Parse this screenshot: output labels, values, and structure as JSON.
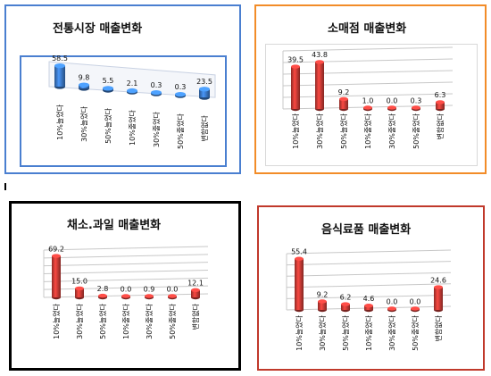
{
  "categories": [
    "10%늘었다",
    "30%늘었다",
    "50%늘었다",
    "10%줄었다",
    "30%줄었다",
    "50%줄었다",
    "변함없다"
  ],
  "colors": {
    "panel1_border": "#4a7fd0",
    "panel2_border": "#f28c28",
    "panel3_border": "#000000",
    "panel4_border": "#c0392b",
    "bar_blue": "#3a78c6",
    "bar_red": "#c83a35",
    "gridline": "#c8c8c8"
  },
  "chart_data": [
    {
      "type": "bar",
      "title": "전통시장 매출변화",
      "categories": [
        "10%늘었다",
        "30%늘었다",
        "50%늘었다",
        "10%줄었다",
        "30%줄었다",
        "50%줄었다",
        "변함없다"
      ],
      "values": [
        58.5,
        9.8,
        5.5,
        2.1,
        0.3,
        0.3,
        23.5
      ],
      "value_labels": [
        "58.5",
        "9.8",
        "5.5",
        "2.1",
        "0.3",
        "0.3",
        "23.5"
      ],
      "style": "3d-cylinder",
      "color": "#3a78c6"
    },
    {
      "type": "bar",
      "title": "소매점 매출변화",
      "categories": [
        "10%늘었다",
        "30%늘었다",
        "50%늘었다",
        "10%줄었다",
        "30%줄었다",
        "50%줄었다",
        "변함없다"
      ],
      "values": [
        39.5,
        43.8,
        9.2,
        1.0,
        0.0,
        0.3,
        6.3
      ],
      "value_labels": [
        "39.5",
        "43.8",
        "9.2",
        "1.0",
        "0.0",
        "0.3",
        "6.3"
      ],
      "style": "3d-cylinder",
      "color": "#c83a35"
    },
    {
      "type": "bar",
      "title": "채소.과일 매출변화",
      "categories": [
        "10%늘었다",
        "30%늘었다",
        "50%늘었다",
        "10%줄었다",
        "30%줄었다",
        "50%줄었다",
        "변함없다"
      ],
      "values": [
        69.2,
        15.0,
        2.8,
        0.0,
        0.9,
        0.0,
        12.1
      ],
      "value_labels": [
        "69.2",
        "15.0",
        "2.8",
        "0.0",
        "0.9",
        "0.0",
        "12.1"
      ],
      "style": "3d-cylinder",
      "color": "#c83a35"
    },
    {
      "type": "bar",
      "title": "음식료품 매출변화",
      "categories": [
        "10%늘었다",
        "30%늘었다",
        "50%늘었다",
        "10%줄었다",
        "30%줄었다",
        "50%줄었다",
        "변함없다"
      ],
      "values": [
        55.4,
        9.2,
        6.2,
        4.6,
        0.0,
        0.0,
        24.6
      ],
      "value_labels": [
        "55.4",
        "9.2",
        "6.2",
        "4.6",
        "0.0",
        "0.0",
        "24.6"
      ],
      "style": "3d-cylinder",
      "color": "#c83a35"
    }
  ]
}
